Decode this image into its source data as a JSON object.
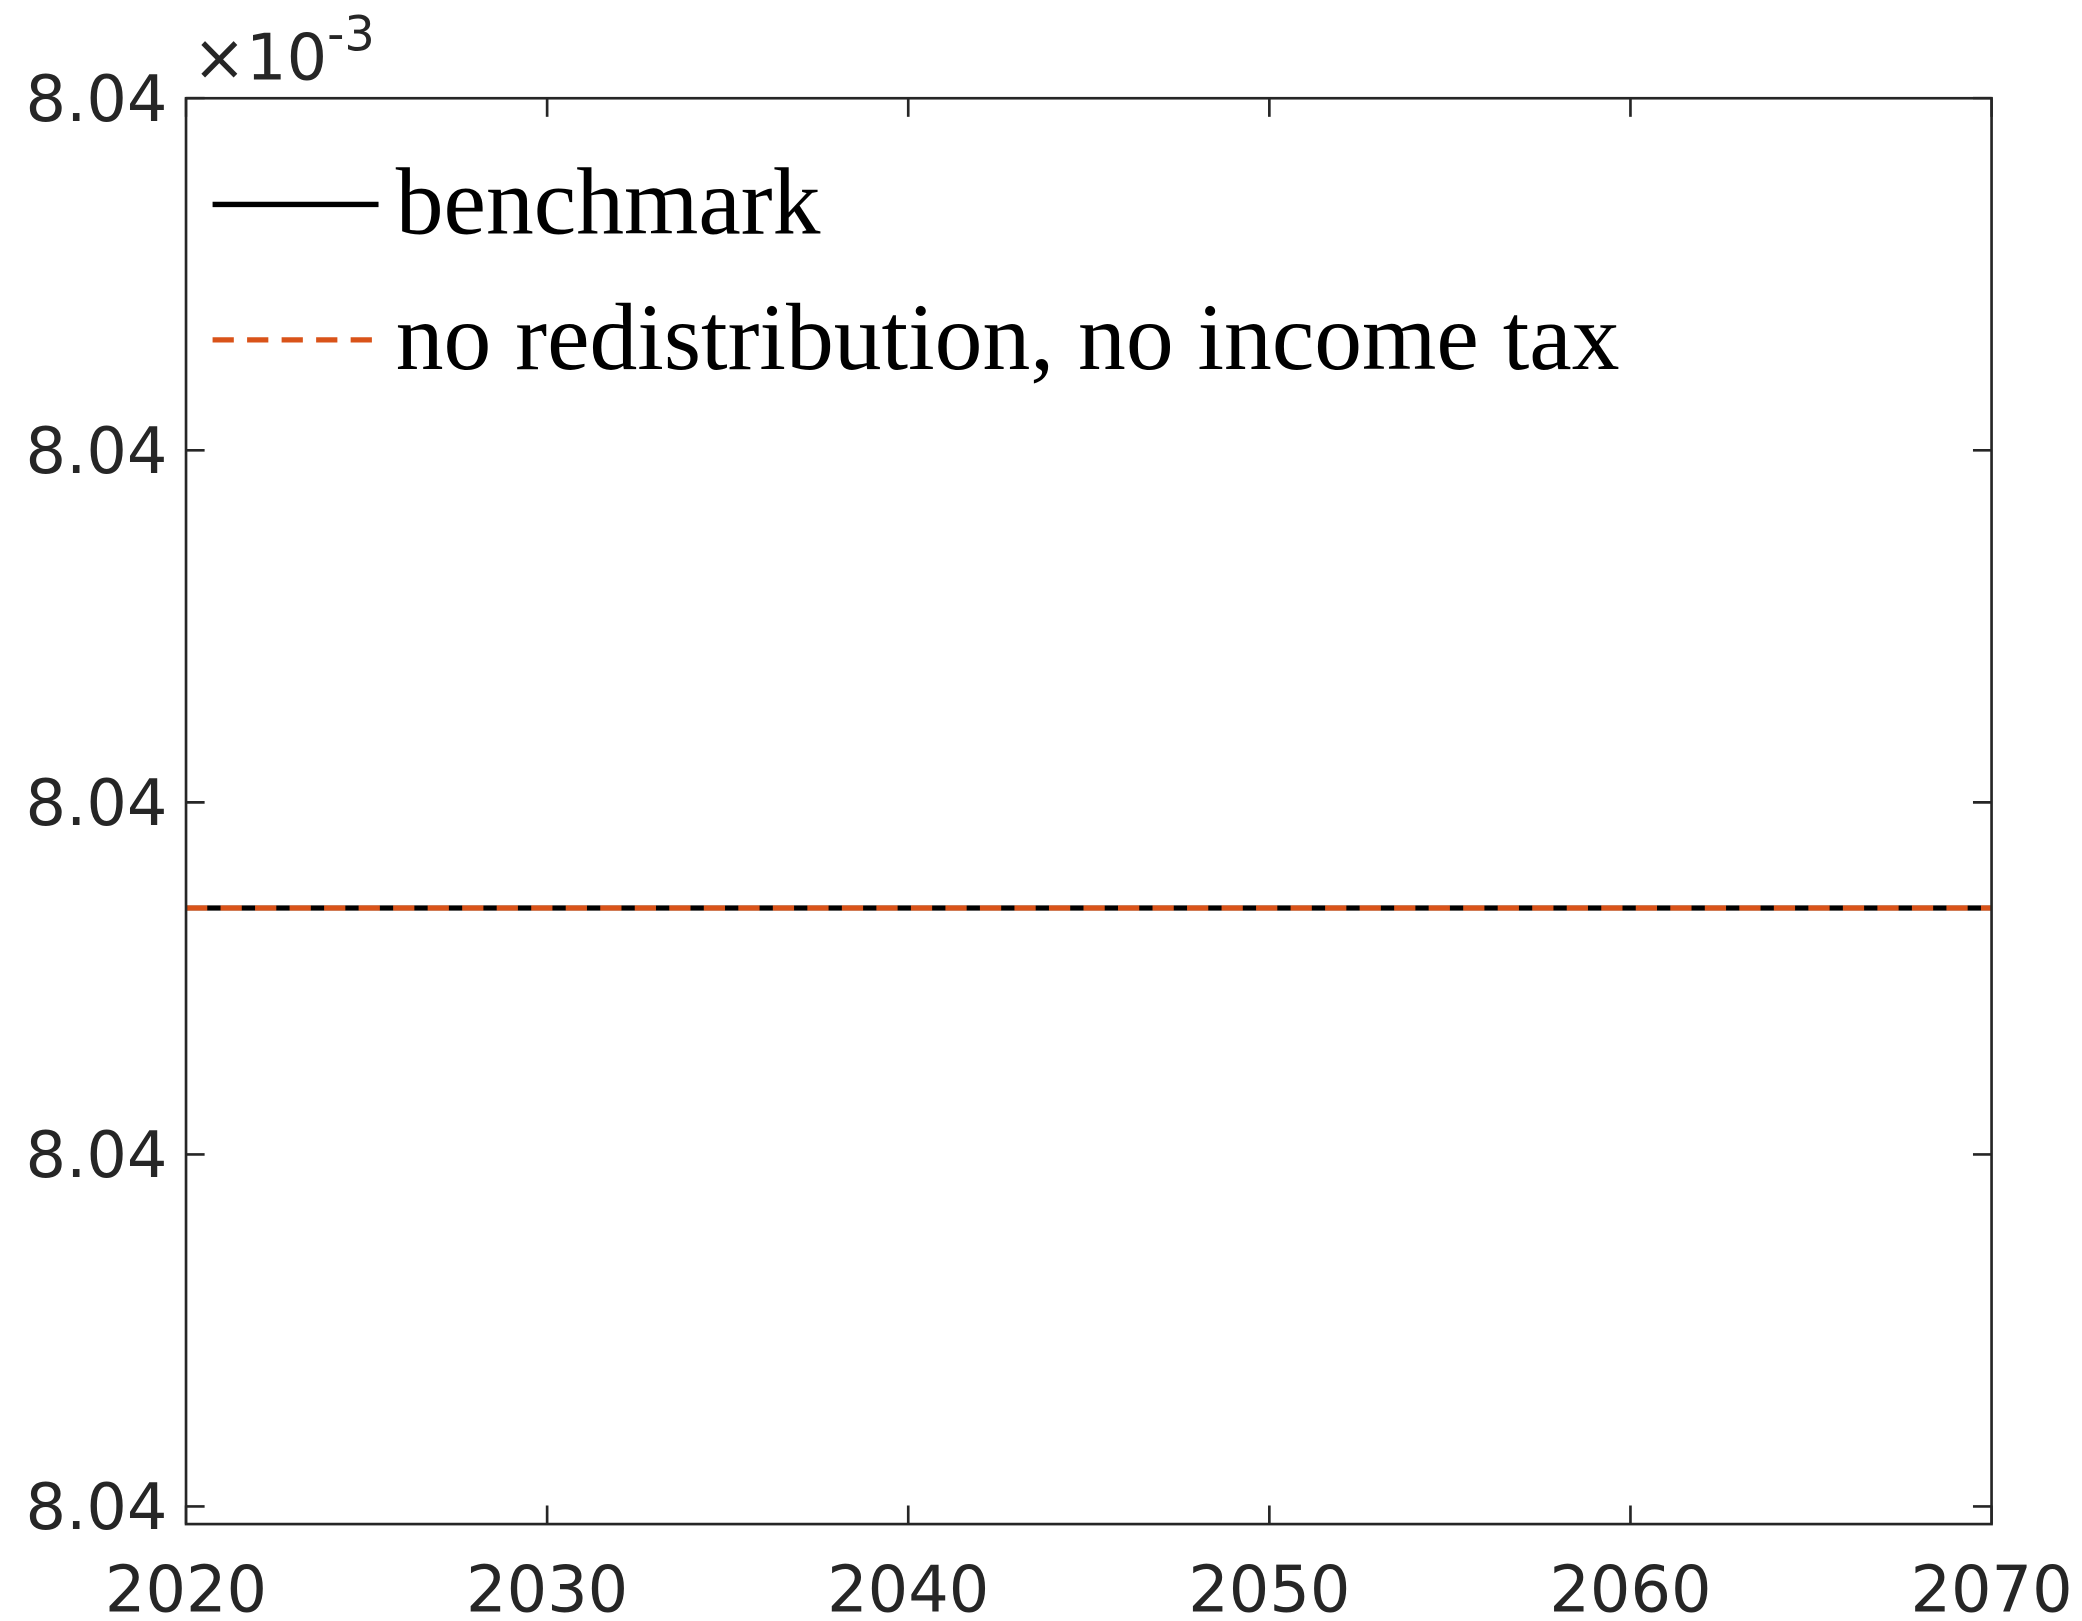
{
  "chart_data": {
    "type": "line",
    "y_exponent": {
      "base": "×10",
      "power": "-3"
    },
    "x": [
      2020,
      2025,
      2030,
      2035,
      2040,
      2045,
      2050,
      2055,
      2060,
      2065,
      2070
    ],
    "series": [
      {
        "name": "benchmark",
        "color": "#000000",
        "line_style": "solid",
        "values": [
          8.03994,
          8.03994,
          8.03994,
          8.03994,
          8.03994,
          8.03994,
          8.03994,
          8.03994,
          8.03994,
          8.03994,
          8.03994
        ]
      },
      {
        "name": "no redistribution, no income tax",
        "color": "#d95319",
        "line_style": "dashed",
        "values": [
          8.03994,
          8.03994,
          8.03994,
          8.03994,
          8.03994,
          8.03994,
          8.03994,
          8.03994,
          8.03994,
          8.03994,
          8.03994
        ]
      }
    ],
    "xlim": [
      2020,
      2070
    ],
    "xticks": [
      2020,
      2030,
      2040,
      2050,
      2060,
      2070
    ],
    "ylim": [
      8.03959,
      8.0404
    ],
    "yticks": [
      {
        "value": 8.0396,
        "label": "8.04"
      },
      {
        "value": 8.0398,
        "label": "8.04"
      },
      {
        "value": 8.04,
        "label": "8.04"
      },
      {
        "value": 8.0402,
        "label": "8.04"
      },
      {
        "value": 8.0404,
        "label": "8.04"
      }
    ],
    "legend": "upper left",
    "grid": false
  }
}
